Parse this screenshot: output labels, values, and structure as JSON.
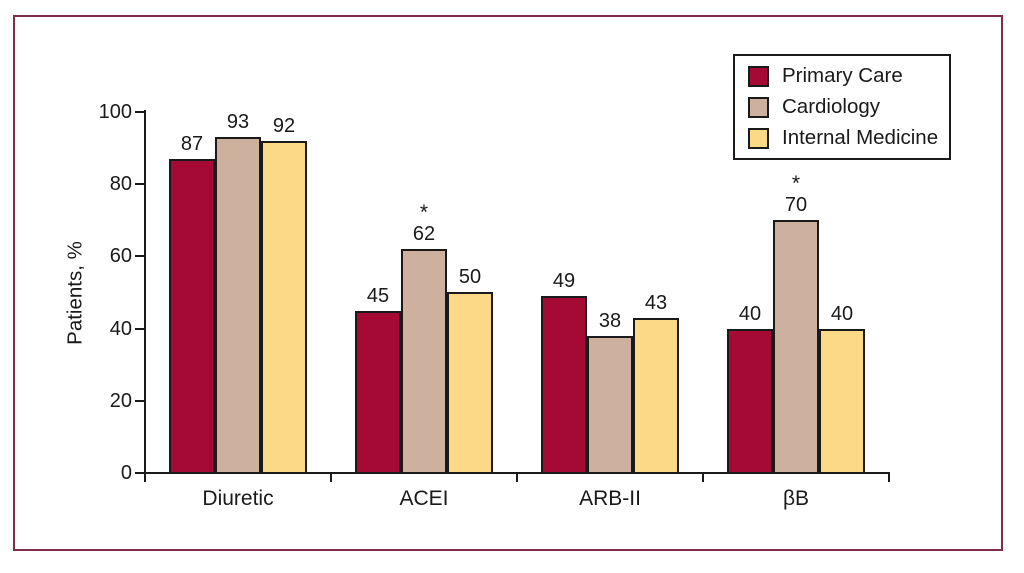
{
  "frame": {
    "border_color": "#7E2D4E"
  },
  "axis_color": "#1A1A1A",
  "chart_data": {
    "type": "bar",
    "categories": [
      "Diuretic",
      "ACEI",
      "ARB-II",
      "βB"
    ],
    "series": [
      {
        "name": "Primary Care",
        "color": "#A50A35",
        "values": [
          87,
          45,
          49,
          40
        ],
        "starred": [
          false,
          false,
          false,
          false
        ]
      },
      {
        "name": "Cardiology",
        "color": "#CDB09E",
        "values": [
          93,
          62,
          38,
          70
        ],
        "starred": [
          false,
          true,
          false,
          true
        ]
      },
      {
        "name": "Internal Medicine",
        "color": "#FCD987",
        "values": [
          92,
          50,
          43,
          40
        ],
        "starred": [
          false,
          false,
          false,
          false
        ]
      }
    ],
    "title": "",
    "xlabel": "",
    "ylabel": "Patients, %",
    "yticks": [
      0,
      20,
      40,
      60,
      80,
      100
    ],
    "ylim": [
      0,
      100
    ],
    "grid": false,
    "bar_value_labels": true,
    "annotation_symbol": "*",
    "legend_position": "top-right"
  }
}
